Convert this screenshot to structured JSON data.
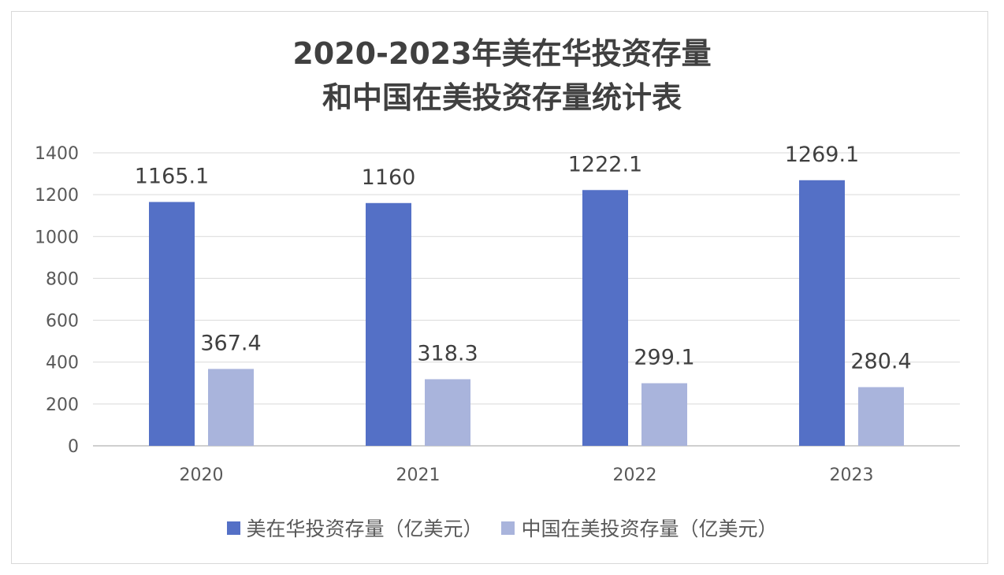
{
  "chart_data": {
    "type": "bar",
    "title_lines": [
      "2020-2023年美在华投资存量",
      "和中国在美投资存量统计表"
    ],
    "categories": [
      "2020",
      "2021",
      "2022",
      "2023"
    ],
    "series": [
      {
        "name": "美在华投资存量（亿美元）",
        "values": [
          1165.1,
          1160,
          1222.1,
          1269.1
        ],
        "color": "#5470c6"
      },
      {
        "name": "中国在美投资存量（亿美元）",
        "values": [
          367.4,
          318.3,
          299.1,
          280.4
        ],
        "color": "#a9b4dc"
      }
    ],
    "ylim": [
      0,
      1400
    ],
    "yticks": [
      0,
      200,
      400,
      600,
      800,
      1000,
      1200,
      1400
    ],
    "xlabel": "",
    "ylabel": "",
    "grid": true,
    "legend_position": "bottom"
  }
}
